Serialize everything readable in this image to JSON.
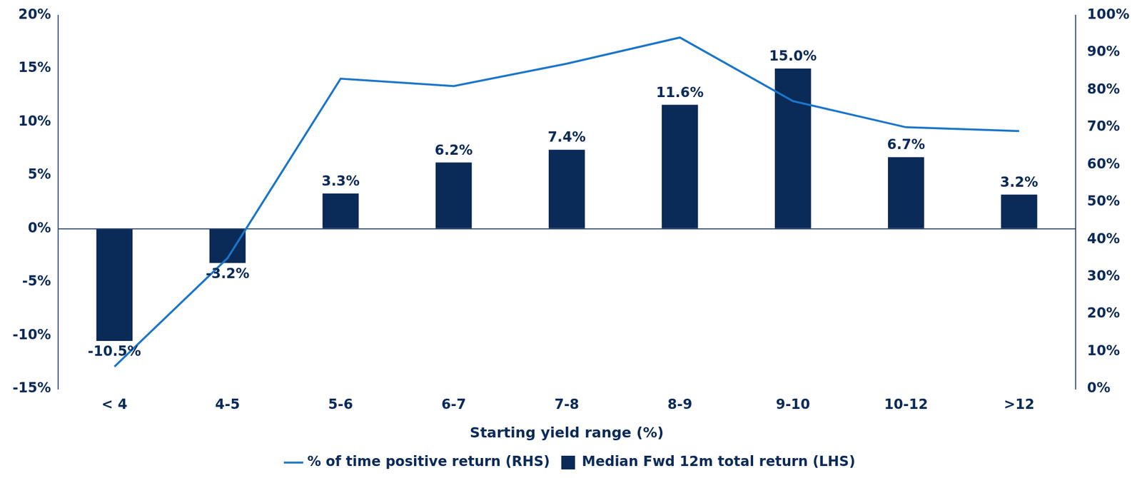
{
  "chart_data": {
    "type": "bar",
    "x_label": "Starting yield range (%)",
    "categories": [
      "< 4",
      "4-5",
      "5-6",
      "6-7",
      "7-8",
      "8-9",
      "9-10",
      "10-12",
      ">12"
    ],
    "series": [
      {
        "name": "Median Fwd 12m total return (LHS)",
        "type": "bar",
        "color": "#0a2a57",
        "values": [
          -10.5,
          -3.2,
          3.3,
          6.2,
          7.4,
          11.6,
          15.0,
          6.7,
          3.2
        ],
        "value_labels": [
          "-10.5%",
          "-3.2%",
          "3.3%",
          "6.2%",
          "7.4%",
          "11.6%",
          "15.0%",
          "6.7%",
          "3.2%"
        ],
        "data_labels": true
      },
      {
        "name": "% of time positive return (RHS)",
        "type": "line",
        "color": "#1b75c9",
        "axis": "y2",
        "values": [
          6,
          35,
          83,
          81,
          87,
          94,
          77,
          70,
          69
        ]
      }
    ],
    "ylim": [
      -15,
      20
    ],
    "yticks": [
      {
        "value": -15,
        "label": "-15%"
      },
      {
        "value": -10,
        "label": "-10%"
      },
      {
        "value": -5,
        "label": "-5%"
      },
      {
        "value": 0,
        "label": "0%"
      },
      {
        "value": 5,
        "label": "5%"
      },
      {
        "value": 10,
        "label": "10%"
      },
      {
        "value": 15,
        "label": "15%"
      },
      {
        "value": 20,
        "label": "20%"
      }
    ],
    "y2lim": [
      0,
      100
    ],
    "y2ticks": [
      {
        "value": 0,
        "label": "0%"
      },
      {
        "value": 10,
        "label": "10%"
      },
      {
        "value": 20,
        "label": "20%"
      },
      {
        "value": 30,
        "label": "30%"
      },
      {
        "value": 40,
        "label": "40%"
      },
      {
        "value": 50,
        "label": "50%"
      },
      {
        "value": 60,
        "label": "60%"
      },
      {
        "value": 70,
        "label": "70%"
      },
      {
        "value": 80,
        "label": "80%"
      },
      {
        "value": 90,
        "label": "90%"
      },
      {
        "value": 100,
        "label": "100%"
      }
    ],
    "grid": false,
    "legend": "bottom"
  }
}
